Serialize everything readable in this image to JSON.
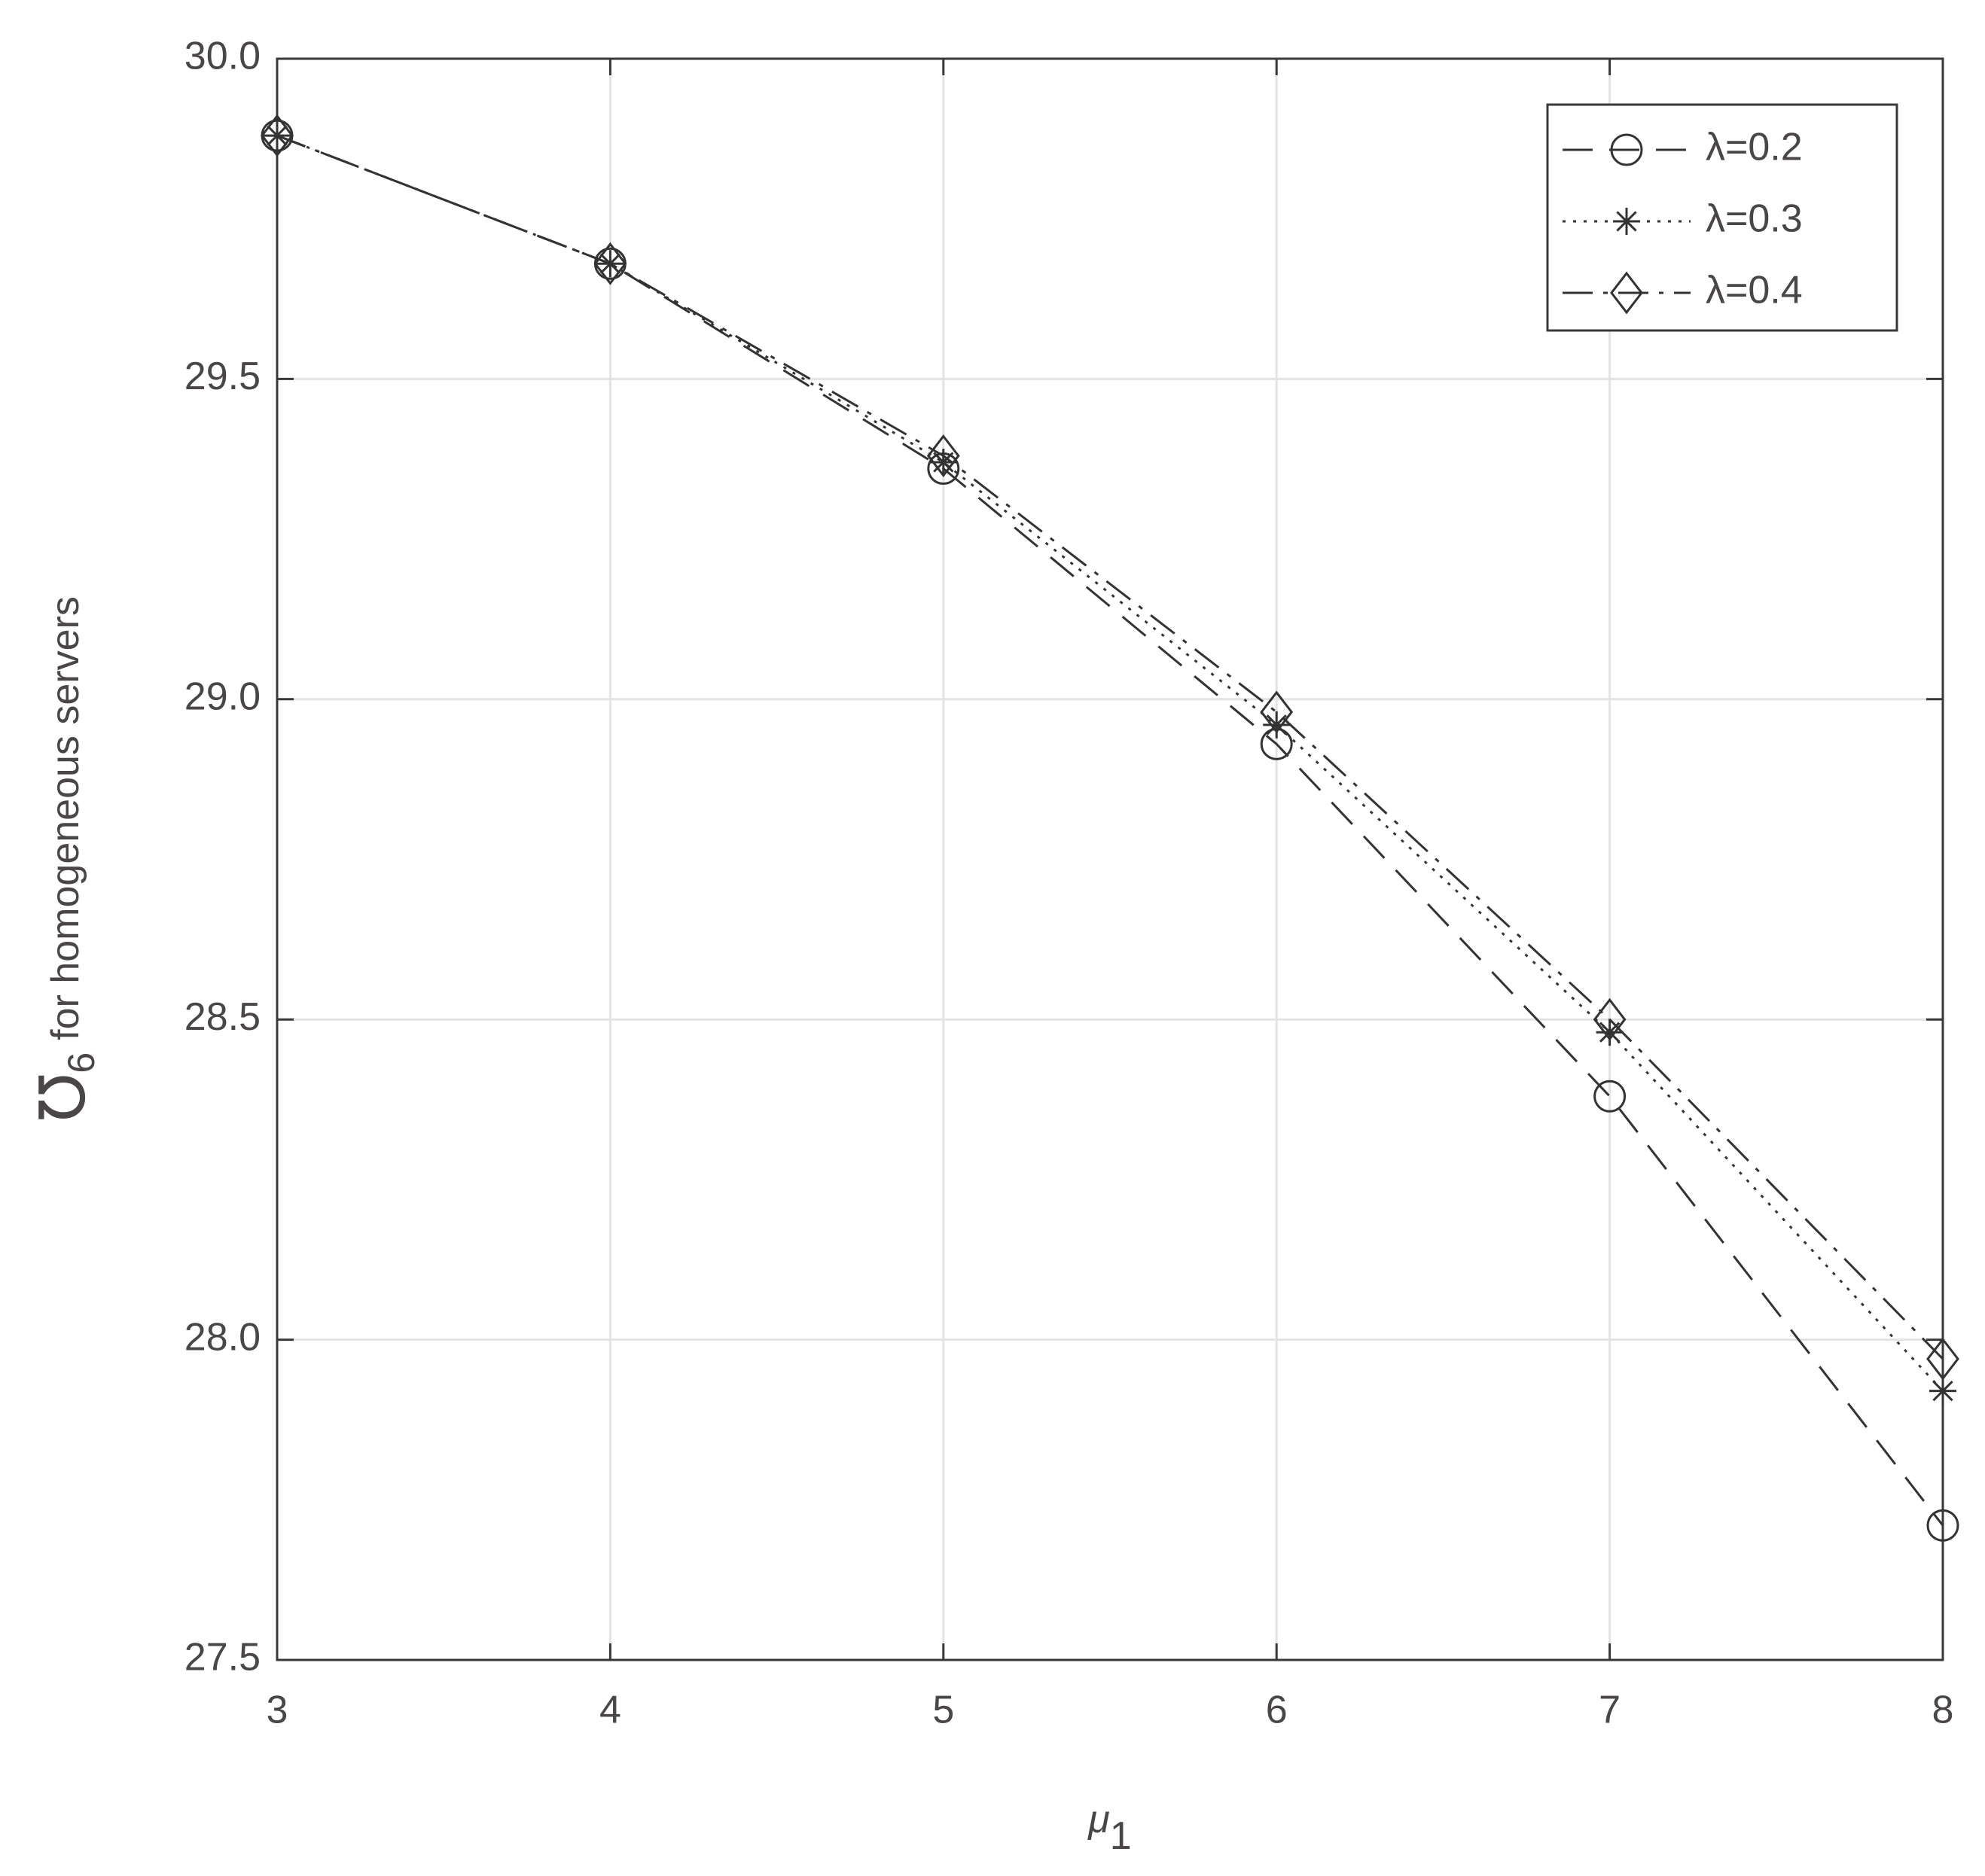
{
  "chart_data": {
    "type": "line",
    "xlabel": {
      "symbol": "μ",
      "subscript": "1"
    },
    "ylabel": {
      "symbol": "℧",
      "subscript": "6",
      "text": "for homogeneous servers"
    },
    "x": [
      3,
      4,
      5,
      6,
      7,
      8
    ],
    "series": [
      {
        "name": "λ=0.2",
        "color": "#333333",
        "line_style": "dashed",
        "marker": "circle",
        "values": [
          29.88,
          29.68,
          29.36,
          28.93,
          28.38,
          27.71
        ]
      },
      {
        "name": "λ=0.3",
        "color": "#333333",
        "line_style": "dotted",
        "marker": "star",
        "values": [
          29.88,
          29.68,
          29.37,
          28.96,
          28.48,
          27.92
        ]
      },
      {
        "name": "λ=0.4",
        "color": "#333333",
        "line_style": "dashdot",
        "marker": "diamond",
        "values": [
          29.88,
          29.68,
          29.38,
          28.98,
          28.5,
          27.97
        ]
      }
    ],
    "xlim": [
      3,
      8
    ],
    "xticks": [
      3,
      4,
      5,
      6,
      7,
      8
    ],
    "ylim": [
      27.5,
      30
    ],
    "yticks": [
      {
        "value": 27.5,
        "label": "27.5"
      },
      {
        "value": 28,
        "label": "28.0"
      },
      {
        "value": 28.5,
        "label": "28.5"
      },
      {
        "value": 29,
        "label": "29.0"
      },
      {
        "value": 29.5,
        "label": "29.5"
      },
      {
        "value": 30,
        "label": "30.0"
      }
    ],
    "grid": true,
    "legend": "upper right"
  }
}
